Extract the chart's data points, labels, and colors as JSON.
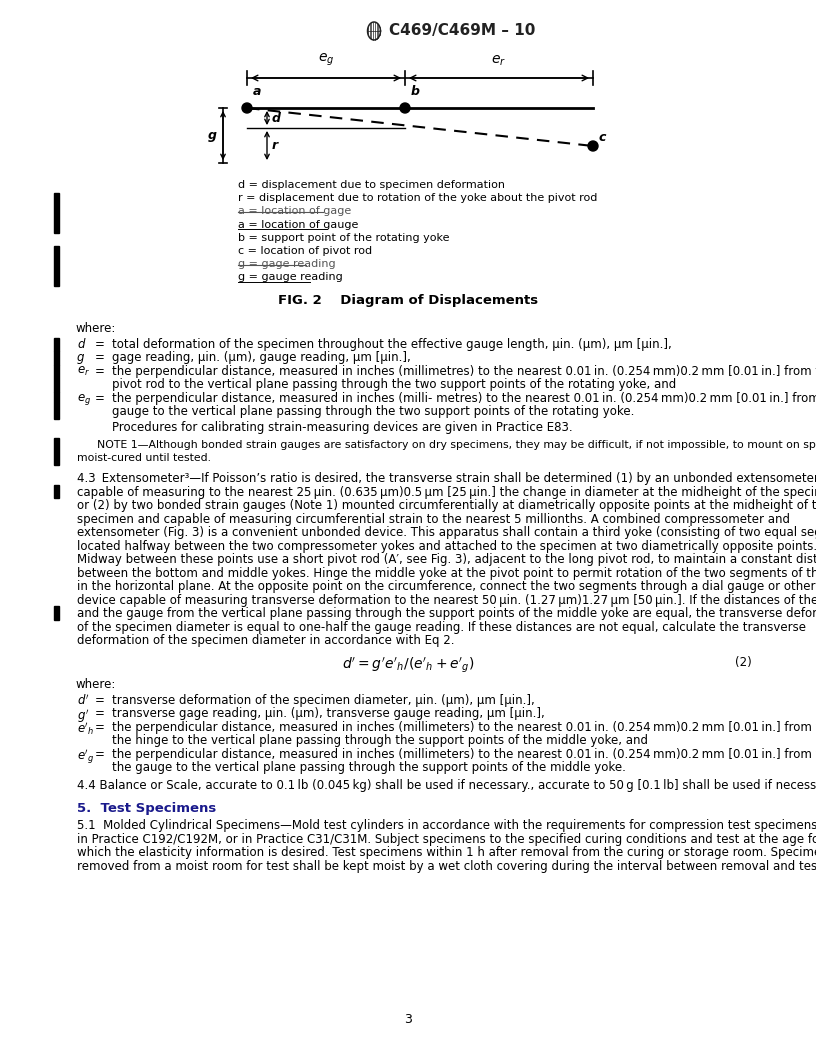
{
  "title": "C469/C469M – 10",
  "page_number": "3",
  "fig_caption": "FIG. 2    Diagram of Displacements",
  "background_color": "#ffffff",
  "text_color": "#000000",
  "section_color": "#1a1a8c",
  "bar_color": "#000000",
  "legend_items": [
    {
      "text": "d = displacement due to specimen deformation",
      "strike": false,
      "underline": false
    },
    {
      "text": "r = displacement due to rotation of the yoke about the pivot rod",
      "strike": false,
      "underline": false
    },
    {
      "text": "a = location of gage",
      "strike": true,
      "underline": false
    },
    {
      "text": "a = location of gauge",
      "strike": false,
      "underline": true
    },
    {
      "text": "b = support point of the rotating yoke",
      "strike": false,
      "underline": false
    },
    {
      "text": "c = location of pivot rod",
      "strike": false,
      "underline": false
    },
    {
      "text": "g = gage reading",
      "strike": true,
      "underline": false
    },
    {
      "text": "g = gauge reading",
      "strike": false,
      "underline": true
    }
  ]
}
